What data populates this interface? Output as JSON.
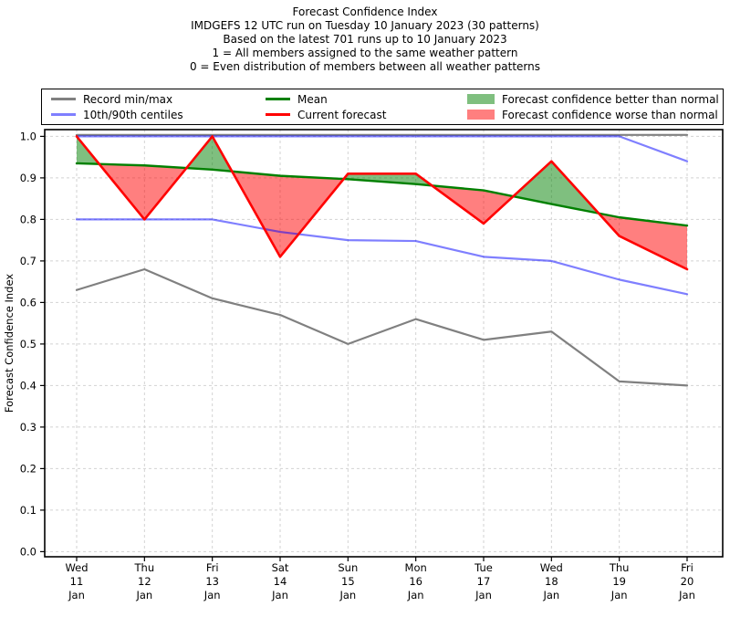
{
  "title_lines": [
    "Forecast Confidence Index",
    "IMDGEFS 12 UTC run on Tuesday 10 January 2023 (30 patterns)",
    "Based on the latest 701 runs up to 10 January 2023",
    "1 = All members assigned to the same weather pattern",
    "0 = Even distribution of members between all weather patterns"
  ],
  "legend": {
    "items": [
      {
        "label": "Record min/max",
        "swatch": "line",
        "color": "#808080"
      },
      {
        "label": "10th/90th centiles",
        "swatch": "line",
        "color": "rgba(0,0,255,0.5)"
      },
      {
        "label": "Mean",
        "swatch": "line",
        "color": "#008000"
      },
      {
        "label": "Current forecast",
        "swatch": "line",
        "color": "#ff0000"
      },
      {
        "label": "Forecast confidence better than normal",
        "swatch": "patch",
        "color": "rgba(0,128,0,0.5)"
      },
      {
        "label": "Forecast confidence worse than normal",
        "swatch": "patch",
        "color": "rgba(255,0,0,0.5)"
      }
    ]
  },
  "chart_data": {
    "type": "line",
    "title": "Forecast Confidence Index",
    "xlabel": "",
    "ylabel": "Forecast Confidence Index",
    "ylim": [
      0.0,
      1.0
    ],
    "ytick_step": 0.1,
    "grid": true,
    "grid_style": "dashed",
    "legend_position": "top",
    "categories": [
      [
        "Wed",
        "11",
        "Jan"
      ],
      [
        "Thu",
        "12",
        "Jan"
      ],
      [
        "Fri",
        "13",
        "Jan"
      ],
      [
        "Sat",
        "14",
        "Jan"
      ],
      [
        "Sun",
        "15",
        "Jan"
      ],
      [
        "Mon",
        "16",
        "Jan"
      ],
      [
        "Tue",
        "17",
        "Jan"
      ],
      [
        "Wed",
        "18",
        "Jan"
      ],
      [
        "Thu",
        "19",
        "Jan"
      ],
      [
        "Fri",
        "20",
        "Jan"
      ]
    ],
    "series": [
      {
        "name": "Record max",
        "color": "#808080",
        "width": 2.2,
        "values": [
          1.0,
          1.0,
          1.0,
          1.0,
          1.0,
          1.0,
          1.0,
          1.0,
          1.0,
          1.0
        ]
      },
      {
        "name": "Record min",
        "color": "#808080",
        "width": 2.2,
        "values": [
          0.63,
          0.68,
          0.61,
          0.57,
          0.5,
          0.56,
          0.51,
          0.53,
          0.41,
          0.4
        ]
      },
      {
        "name": "90th centile",
        "color": "rgba(0,0,255,0.5)",
        "width": 2.2,
        "values": [
          1.0,
          1.0,
          1.0,
          1.0,
          1.0,
          1.0,
          1.0,
          1.0,
          1.0,
          0.94
        ]
      },
      {
        "name": "10th centile",
        "color": "rgba(0,0,255,0.5)",
        "width": 2.2,
        "values": [
          0.8,
          0.8,
          0.8,
          0.77,
          0.75,
          0.748,
          0.71,
          0.7,
          0.655,
          0.62
        ]
      },
      {
        "name": "Mean",
        "color": "#008000",
        "width": 2.4,
        "values": [
          0.935,
          0.93,
          0.92,
          0.905,
          0.897,
          0.885,
          0.87,
          0.837,
          0.805,
          0.785
        ]
      },
      {
        "name": "Current forecast",
        "color": "#ff0000",
        "width": 2.6,
        "values": [
          1.0,
          0.8,
          1.0,
          0.71,
          0.91,
          0.91,
          0.79,
          0.94,
          0.76,
          0.68
        ]
      }
    ],
    "fills": [
      {
        "name": "Forecast confidence better than normal",
        "color": "rgba(0,128,0,0.5)",
        "between": [
          "Current forecast",
          "Mean"
        ],
        "where": "current_above_mean"
      },
      {
        "name": "Forecast confidence worse than normal",
        "color": "rgba(255,0,0,0.5)",
        "between": [
          "Current forecast",
          "Mean"
        ],
        "where": "current_below_mean"
      }
    ]
  }
}
